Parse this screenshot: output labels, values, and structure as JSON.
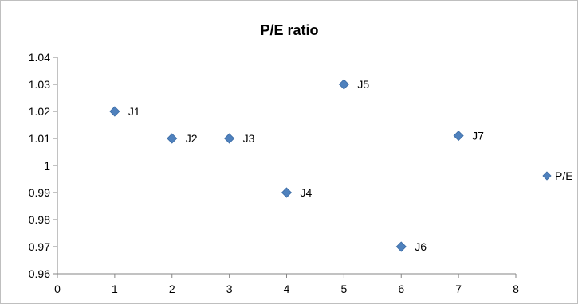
{
  "chart_data": {
    "type": "scatter",
    "title": "P/E ratio",
    "xlabel": "",
    "ylabel": "",
    "xlim": [
      0,
      8
    ],
    "ylim": [
      0.96,
      1.04
    ],
    "x_ticks": [
      "0",
      "1",
      "2",
      "3",
      "4",
      "5",
      "6",
      "7",
      "8"
    ],
    "y_ticks": [
      "0.96",
      "0.97",
      "0.98",
      "0.99",
      "1",
      "1.01",
      "1.02",
      "1.03",
      "1.04"
    ],
    "grid": false,
    "legend": "right",
    "series": [
      {
        "name": "P/E",
        "color": "#4f81bd",
        "marker": "diamond",
        "points": [
          {
            "label": "J1",
            "x": 1,
            "y": 1.02
          },
          {
            "label": "J2",
            "x": 2,
            "y": 1.01
          },
          {
            "label": "J3",
            "x": 3,
            "y": 1.01
          },
          {
            "label": "J4",
            "x": 4,
            "y": 0.99
          },
          {
            "label": "J5",
            "x": 5,
            "y": 1.03
          },
          {
            "label": "J6",
            "x": 6,
            "y": 0.97
          },
          {
            "label": "J7",
            "x": 7,
            "y": 1.011
          }
        ]
      }
    ]
  }
}
